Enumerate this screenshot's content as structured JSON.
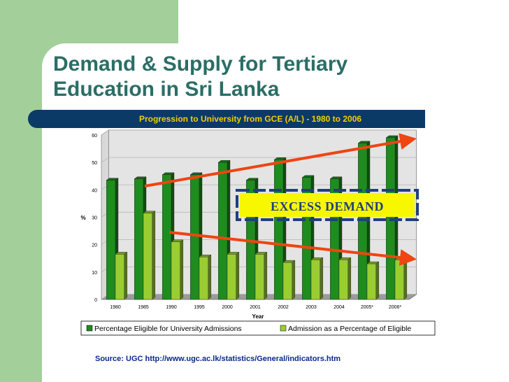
{
  "slide": {
    "title": "Demand & Supply for Tertiary Education in Sri Lanka",
    "source": "Source: UGC http://www.ugc.ac.lk/statistics/General/indicators.htm"
  },
  "colors": {
    "title": "#2b6e66",
    "side_panel": "#a3cf9b",
    "stripe": "#0b3a66",
    "chart_title": "#f2cf00",
    "series1": "#1e8c1e",
    "series2": "#9acd32",
    "arrow": "#ee4512",
    "callout_bg": "#f7f800"
  },
  "chart_data": {
    "type": "bar",
    "title": "Progression to  University from GCE (A/L) - 1980 to 2006",
    "xlabel": "Year",
    "ylabel": "%",
    "ylim": [
      0,
      60
    ],
    "yticks": [
      0,
      10,
      20,
      30,
      40,
      50,
      60
    ],
    "categories": [
      "1980",
      "1985",
      "1990",
      "1995",
      "2000",
      "2001",
      "2002",
      "2003",
      "2004",
      "2005*",
      "2006*"
    ],
    "series": [
      {
        "name": "Percentage Eligible for University Admissions",
        "values": [
          43.5,
          44,
          45.5,
          45.5,
          50,
          43.5,
          51,
          44.5,
          44,
          57,
          59
        ]
      },
      {
        "name": "Admission as a Percentage of Eligible",
        "values": [
          16.5,
          31.5,
          21,
          15.5,
          16.5,
          16.5,
          13.5,
          14.5,
          14.5,
          13,
          14.5
        ]
      }
    ],
    "legend_position": "bottom",
    "annotations": [
      {
        "text": "EXCESS DEMAND",
        "type": "callout"
      },
      {
        "text": "",
        "type": "arrow-up",
        "meaning": "demand rising"
      },
      {
        "text": "",
        "type": "arrow-down",
        "meaning": "admission falling"
      }
    ]
  }
}
